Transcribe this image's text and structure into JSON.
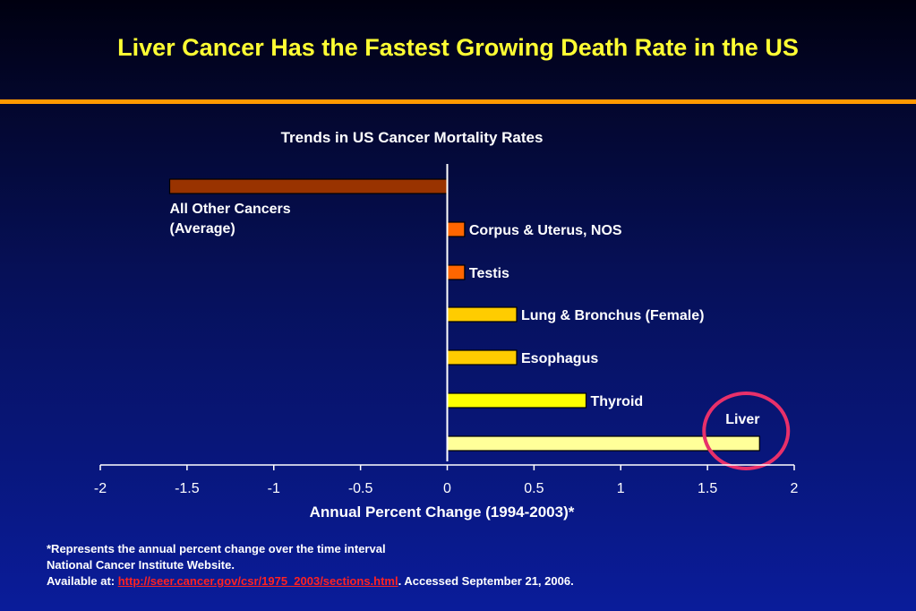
{
  "title": "Liver Cancer Has the Fastest Growing Death Rate in the US",
  "colors": {
    "title": "#ffff33",
    "rule": "#ff9900",
    "highlight_circle": "#e8306a",
    "link": "#ff2222"
  },
  "chart_data": {
    "type": "bar",
    "orientation": "horizontal",
    "title": "Trends in US Cancer Mortality Rates",
    "xlabel": "Annual Percent Change (1994-2003)*",
    "xlim": [
      -2,
      2
    ],
    "xticks": [
      -2,
      -1.5,
      -1,
      -0.5,
      0,
      0.5,
      1,
      1.5,
      2
    ],
    "xtick_labels": [
      "-2",
      "-1.5",
      "-1",
      "-0.5",
      "0",
      "0.5",
      "1",
      "1.5",
      "2"
    ],
    "categories": [
      [
        "All Other Cancers",
        "(Average)"
      ],
      [
        "Corpus & Uterus, NOS"
      ],
      [
        "Testis"
      ],
      [
        "Lung & Bronchus (Female)"
      ],
      [
        "Esophagus"
      ],
      [
        "Thyroid"
      ],
      [
        "Liver"
      ]
    ],
    "values": [
      -1.6,
      0.1,
      0.1,
      0.4,
      0.4,
      0.8,
      1.8
    ],
    "bar_colors": [
      "#993300",
      "#ff6600",
      "#ff6600",
      "#ffcc00",
      "#ffcc00",
      "#ffff00",
      "#ffff99"
    ],
    "highlight": "Liver"
  },
  "footnote": {
    "line1": "*Represents the annual percent change over the time interval",
    "line2": "National Cancer Institute Website.",
    "available_prefix": "Available at: ",
    "link": "http://seer.cancer.gov/csr/1975_2003/sections.html",
    "accessed": ".  Accessed September 21, 2006."
  }
}
